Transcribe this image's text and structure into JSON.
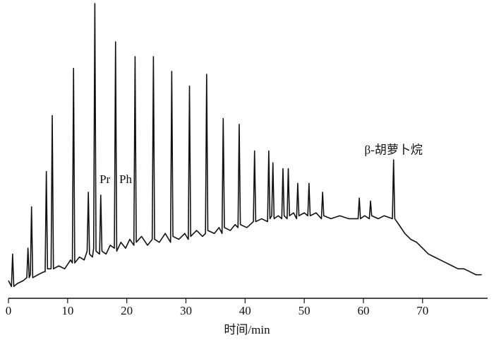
{
  "chart_data": {
    "type": "line",
    "color": "#111111",
    "xlabel": "时间/min",
    "xlim": [
      0,
      81
    ],
    "xticks": [
      0,
      10,
      20,
      30,
      40,
      50,
      60,
      70
    ],
    "ylim": [
      0,
      100
    ],
    "annotations": [
      {
        "text": "Pr",
        "x": 16.3,
        "y": 40
      },
      {
        "text": "Ph",
        "x": 19.8,
        "y": 40
      },
      {
        "text": "β-胡萝卜烷",
        "x": 65.1,
        "y": 50
      }
    ],
    "x": [
      0,
      0.5,
      0.7,
      0.9,
      1.5,
      2.5,
      3.1,
      3.3,
      3.5,
      3.7,
      3.9,
      4.1,
      5,
      6,
      6.2,
      6.4,
      6.6,
      7.2,
      7.4,
      7.6,
      8.5,
      9.5,
      10.5,
      10.8,
      11,
      11.2,
      12,
      12.8,
      13.3,
      13.5,
      13.7,
      14.2,
      14.4,
      14.6,
      14.8,
      15.4,
      15.6,
      15.8,
      16.5,
      17.2,
      17.9,
      18.1,
      18.3,
      19,
      19.8,
      20.5,
      21.2,
      21.4,
      21.6,
      22.5,
      23.5,
      24.3,
      24.5,
      24.7,
      25.5,
      26.5,
      27.4,
      27.6,
      27.8,
      28.8,
      29.8,
      30.4,
      30.6,
      30.8,
      31.8,
      32.8,
      33.3,
      33.5,
      33.7,
      34.8,
      35.6,
      36.1,
      36.3,
      36.5,
      37.5,
      38.3,
      38.8,
      39,
      39.2,
      40.3,
      41.4,
      41.6,
      41.8,
      42.8,
      43.8,
      44,
      44.2,
      44.5,
      44.7,
      44.9,
      45.6,
      46.2,
      46.4,
      46.6,
      47.1,
      47.3,
      47.5,
      48.2,
      48.7,
      48.9,
      49.1,
      50,
      50.6,
      50.8,
      51,
      52,
      52.9,
      53.1,
      53.3,
      54.5,
      56,
      57.5,
      59.1,
      59.3,
      59.5,
      60.2,
      61,
      61.2,
      61.4,
      62.5,
      63.5,
      64.9,
      65.1,
      65.3,
      66,
      67,
      68,
      69,
      70,
      71,
      72,
      73,
      74,
      75,
      76,
      77,
      78,
      79,
      80
    ],
    "values": [
      6,
      4,
      15,
      4,
      5,
      6,
      7,
      17,
      7,
      8,
      31,
      7,
      8,
      9,
      9,
      43,
      10,
      10,
      62,
      10,
      11,
      10,
      13,
      12,
      78,
      12,
      14,
      13,
      16,
      36,
      15,
      14,
      17,
      100,
      16,
      15,
      35,
      16,
      15,
      18,
      17,
      87,
      16,
      19,
      17,
      20,
      18,
      82,
      19,
      21,
      18,
      20,
      82,
      20,
      19,
      22,
      19,
      77,
      21,
      20,
      22,
      20,
      72,
      21,
      23,
      21,
      22,
      76,
      23,
      22,
      24,
      22,
      61,
      24,
      23,
      25,
      24,
      59,
      25,
      24,
      26,
      50,
      26,
      27,
      26,
      50,
      27,
      28,
      46,
      27,
      28,
      27,
      44,
      28,
      27,
      44,
      28,
      29,
      27,
      39,
      28,
      29,
      28,
      39,
      28,
      29,
      27,
      36,
      28,
      27,
      28,
      27,
      27,
      34,
      27,
      28,
      27,
      33,
      28,
      27,
      28,
      27,
      47,
      27,
      25,
      22,
      20,
      19,
      17,
      15,
      14,
      13,
      12,
      11,
      10,
      10,
      9,
      8,
      8
    ]
  }
}
